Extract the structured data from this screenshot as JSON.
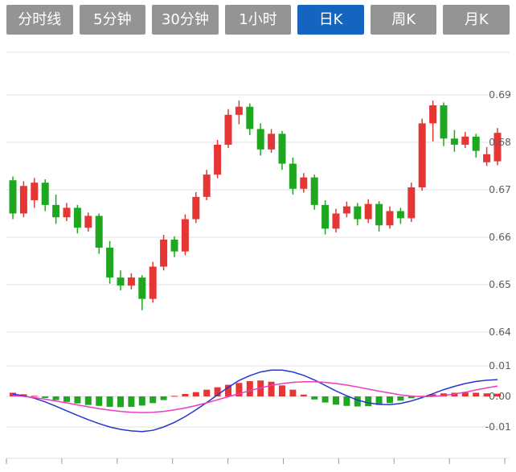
{
  "tabs": [
    {
      "label": "分时线",
      "active": false
    },
    {
      "label": "5分钟",
      "active": false
    },
    {
      "label": "30分钟",
      "active": false
    },
    {
      "label": "1小时",
      "active": false
    },
    {
      "label": "日K",
      "active": true
    },
    {
      "label": "周K",
      "active": false
    },
    {
      "label": "月K",
      "active": false
    }
  ],
  "colors": {
    "tab_bg": "#949494",
    "tab_active_bg": "#1565c0",
    "tab_text": "#ffffff",
    "up": "#e53535",
    "down": "#1fa81f",
    "dif": "#2936cc",
    "dea": "#e83ec4",
    "grid": "#e2e2e2",
    "tick": "#9a9a9a",
    "axis_text": "#5f5f5f",
    "background": "#ffffff"
  },
  "chart_data": {
    "type": "candlestick",
    "title": "",
    "panels": [
      "price-candles",
      "macd"
    ],
    "price_axis": {
      "values": [
        0.69,
        0.68,
        0.67,
        0.66,
        0.65,
        0.64
      ],
      "labels": [
        "0.69",
        "0.68",
        "0.67",
        "0.66",
        "0.65",
        "0.64"
      ],
      "range": [
        0.637,
        0.699
      ],
      "grid": true,
      "position": "right"
    },
    "macd_axis": {
      "values": [
        0.01,
        0,
        -0.01
      ],
      "labels": [
        "0.01",
        "0.00",
        "-0.01"
      ],
      "range": [
        -0.02,
        0.015
      ],
      "grid": true,
      "position": "right"
    },
    "candles": [
      [
        0.672,
        0.6728,
        0.6638,
        0.665
      ],
      [
        0.665,
        0.6718,
        0.6642,
        0.6708
      ],
      [
        0.6678,
        0.6725,
        0.6662,
        0.6715
      ],
      [
        0.6715,
        0.6722,
        0.6655,
        0.6668
      ],
      [
        0.6668,
        0.669,
        0.6628,
        0.6642
      ],
      [
        0.6642,
        0.6672,
        0.6634,
        0.6662
      ],
      [
        0.6662,
        0.6668,
        0.6608,
        0.662
      ],
      [
        0.662,
        0.6652,
        0.6612,
        0.6645
      ],
      [
        0.6645,
        0.665,
        0.6565,
        0.6578
      ],
      [
        0.6578,
        0.6592,
        0.6502,
        0.6515
      ],
      [
        0.6515,
        0.653,
        0.6488,
        0.6498
      ],
      [
        0.6498,
        0.6524,
        0.649,
        0.6515
      ],
      [
        0.6515,
        0.652,
        0.6446,
        0.647
      ],
      [
        0.647,
        0.6548,
        0.6462,
        0.6538
      ],
      [
        0.6538,
        0.6605,
        0.653,
        0.6595
      ],
      [
        0.6595,
        0.6602,
        0.6558,
        0.657
      ],
      [
        0.657,
        0.6648,
        0.6562,
        0.6638
      ],
      [
        0.6638,
        0.6695,
        0.663,
        0.6685
      ],
      [
        0.6685,
        0.6742,
        0.6678,
        0.6732
      ],
      [
        0.6732,
        0.6805,
        0.6724,
        0.6795
      ],
      [
        0.6795,
        0.687,
        0.6788,
        0.6858
      ],
      [
        0.6858,
        0.6888,
        0.6838,
        0.6875
      ],
      [
        0.6875,
        0.6882,
        0.6815,
        0.6828
      ],
      [
        0.6828,
        0.684,
        0.6772,
        0.6785
      ],
      [
        0.6785,
        0.6828,
        0.6778,
        0.6818
      ],
      [
        0.6818,
        0.6824,
        0.6742,
        0.6755
      ],
      [
        0.6755,
        0.6768,
        0.669,
        0.6702
      ],
      [
        0.6702,
        0.6735,
        0.6694,
        0.6726
      ],
      [
        0.6726,
        0.6732,
        0.6658,
        0.6668
      ],
      [
        0.6668,
        0.6678,
        0.6606,
        0.6618
      ],
      [
        0.6618,
        0.666,
        0.661,
        0.665
      ],
      [
        0.665,
        0.6675,
        0.6642,
        0.6665
      ],
      [
        0.6665,
        0.6672,
        0.6625,
        0.6638
      ],
      [
        0.6638,
        0.668,
        0.663,
        0.667
      ],
      [
        0.667,
        0.6676,
        0.6612,
        0.6625
      ],
      [
        0.6625,
        0.6665,
        0.6618,
        0.6655
      ],
      [
        0.6655,
        0.6662,
        0.6628,
        0.664
      ],
      [
        0.664,
        0.6715,
        0.6632,
        0.6705
      ],
      [
        0.6705,
        0.685,
        0.6698,
        0.684
      ],
      [
        0.684,
        0.6888,
        0.6802,
        0.6878
      ],
      [
        0.6878,
        0.6884,
        0.6792,
        0.6808
      ],
      [
        0.6808,
        0.6826,
        0.678,
        0.6795
      ],
      [
        0.6795,
        0.6822,
        0.6788,
        0.6812
      ],
      [
        0.6812,
        0.6818,
        0.6768,
        0.6782
      ],
      [
        0.6758,
        0.679,
        0.675,
        0.6775
      ],
      [
        0.676,
        0.683,
        0.6752,
        0.682
      ]
    ],
    "macd": {
      "histogram": [
        0.0012,
        0.0007,
        0.0002,
        -0.0005,
        -0.0012,
        -0.0018,
        -0.0023,
        -0.0028,
        -0.0031,
        -0.0034,
        -0.0035,
        -0.0034,
        -0.003,
        -0.0022,
        -0.0012,
        0.0002,
        0.0008,
        0.0014,
        0.0022,
        0.003,
        0.0038,
        0.0044,
        0.005,
        0.0052,
        0.0048,
        0.0036,
        0.0022,
        0.0006,
        -0.001,
        -0.002,
        -0.0027,
        -0.0031,
        -0.0033,
        -0.0032,
        -0.0028,
        -0.0022,
        -0.0014,
        -0.0006,
        0.0002,
        0.0007,
        0.001,
        0.0012,
        0.0013,
        0.0012,
        0.001,
        0.0009
      ],
      "dif": [
        0.0008,
        0.0002,
        -0.0006,
        -0.0018,
        -0.0032,
        -0.0047,
        -0.0062,
        -0.0076,
        -0.0089,
        -0.01,
        -0.0108,
        -0.0113,
        -0.0115,
        -0.0111,
        -0.01,
        -0.0085,
        -0.0066,
        -0.0044,
        -0.002,
        0.0005,
        0.003,
        0.0052,
        0.0068,
        0.008,
        0.0086,
        0.0086,
        0.008,
        0.0069,
        0.0054,
        0.0036,
        0.0018,
        0.0002,
        -0.0012,
        -0.0021,
        -0.0026,
        -0.0027,
        -0.0023,
        -0.0015,
        -0.0004,
        0.0009,
        0.0022,
        0.0033,
        0.0042,
        0.0049,
        0.0053,
        0.0055
      ],
      "dea": [
        0.0003,
        0.0,
        -0.0004,
        -0.0009,
        -0.0015,
        -0.0021,
        -0.0028,
        -0.0034,
        -0.004,
        -0.0045,
        -0.0049,
        -0.0052,
        -0.0053,
        -0.0052,
        -0.0049,
        -0.0044,
        -0.0038,
        -0.003,
        -0.0021,
        -0.0011,
        -0.0001,
        0.0009,
        0.0019,
        0.0028,
        0.0036,
        0.0042,
        0.0046,
        0.0048,
        0.0048,
        0.0046,
        0.0042,
        0.0037,
        0.0031,
        0.0024,
        0.0017,
        0.0011,
        0.0005,
        0.0001,
        -0.0001,
        0.0,
        0.0003,
        0.0008,
        0.0014,
        0.0021,
        0.0028,
        0.0034
      ]
    },
    "legend": "none",
    "up_means": "close >= open (red, Chinese convention)",
    "down_means": "close < open (green, Chinese convention)"
  }
}
